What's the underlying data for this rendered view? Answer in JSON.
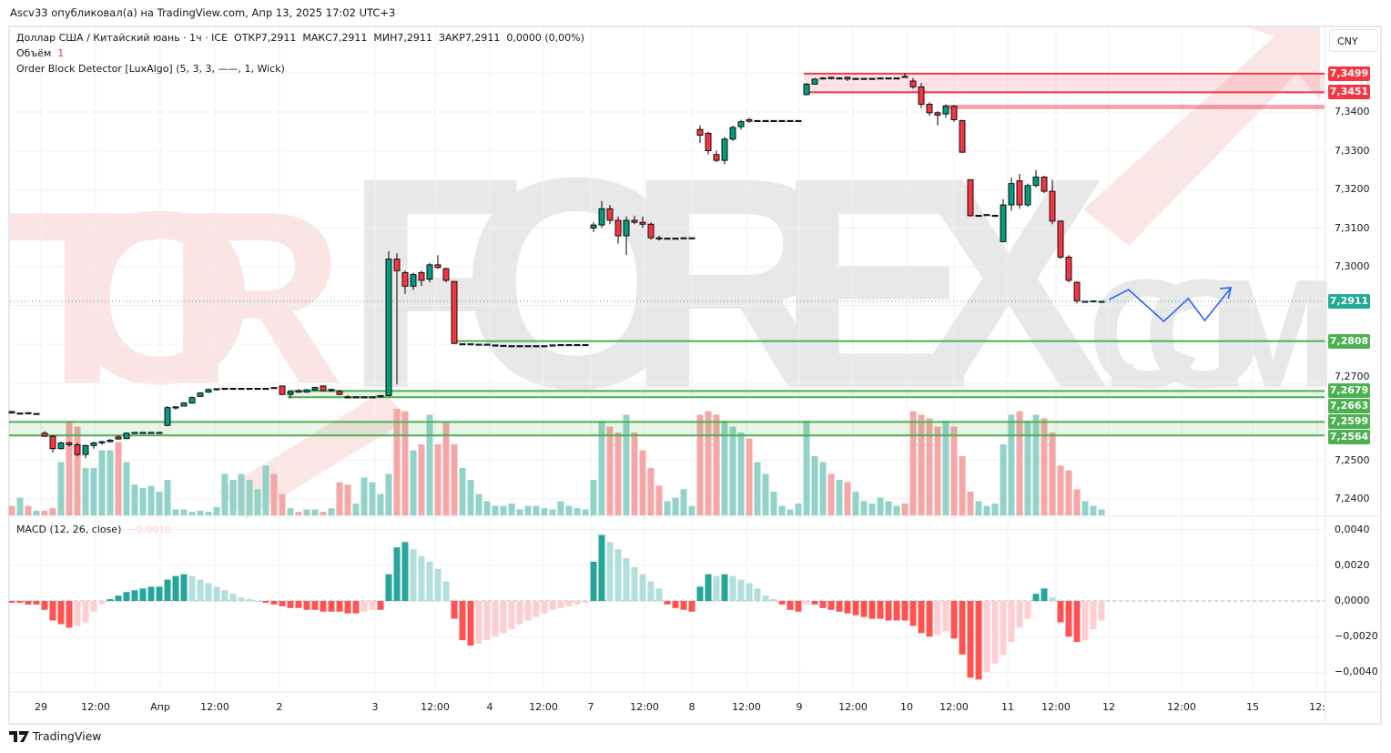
{
  "header": {
    "published": "Ascv33 опубликовал(а) на TradingView.com, Апр 13, 2025 17:02 UTC+3"
  },
  "legend": {
    "symbol": "Доллар США / Китайский юань · 1ч · ICE",
    "open": "ОТКР7,2911",
    "high": "МАКС7,2911",
    "low": "МИН7,2911",
    "close": "ЗАКР7,2911",
    "change": "0,0000 (0,00%)",
    "volume_label": "Объём",
    "volume_value": "1",
    "indicator": "Order Block Detector [LuxAlgo] (5, 3, 3, ——, 1, Wick)",
    "macd_label": "MACD (12, 26, close)",
    "macd_value": "−0,0010"
  },
  "currency_button": "CNY",
  "watermark": {
    "text_left": "TOR",
    "text_mid": "FOREX",
    "text_right": ".COM"
  },
  "price_axis": {
    "ticks": [
      "7,3400",
      "7,3300",
      "7,3200",
      "7,3100",
      "7,3000",
      "7,2700",
      "7,2500",
      "7,2400"
    ],
    "tick_values": [
      7.34,
      7.33,
      7.32,
      7.31,
      7.3,
      7.27,
      7.25,
      7.24
    ],
    "ylim": [
      7.2392,
      7.3529
    ]
  },
  "price_badges": [
    {
      "label": "7,3499",
      "value": 7.3499,
      "color": "#f23645"
    },
    {
      "label": "7,3451",
      "value": 7.3451,
      "color": "#f23645"
    },
    {
      "label": "7,2911",
      "value": 7.2911,
      "color": "#22ab94"
    },
    {
      "label": "7,2808",
      "value": 7.2808,
      "color": "#4caf50"
    },
    {
      "label": "7,2679",
      "value": 7.2679,
      "color": "#4caf50"
    },
    {
      "label": "7,2663",
      "value": 7.2663,
      "color": "#4caf50"
    },
    {
      "label": "7,2599",
      "value": 7.2599,
      "color": "#4caf50"
    },
    {
      "label": "7,2564",
      "value": 7.2564,
      "color": "#4caf50"
    }
  ],
  "macd_axis": {
    "ticks": [
      "0,0040",
      "0,0020",
      "0,0000",
      "−0,0020",
      "−0,0040"
    ],
    "tick_values": [
      0.004,
      0.002,
      0,
      -0.002,
      -0.004
    ]
  },
  "time_axis": [
    "29",
    "12:00",
    "Апр",
    "12:00",
    "2",
    "3",
    "12:00",
    "4",
    "12:00",
    "7",
    "12:00",
    "8",
    "12:00",
    "9",
    "12:00",
    "10",
    "12:00",
    "11",
    "12:00",
    "12",
    "12:00",
    "15",
    "12:"
  ],
  "colors": {
    "up": "#089981",
    "down": "#f23645",
    "bull_ob": "#4caf50",
    "bear_ob": "#f23645",
    "forecast": "#2962ff",
    "last_price": "#22ab94"
  },
  "footer": {
    "brand": "TradingView"
  },
  "chart_data": {
    "type": "candlestick",
    "symbol": "USDCNY",
    "interval": "1h",
    "candles": [
      [
        7.2626,
        7.2628,
        7.262,
        7.2622
      ],
      [
        7.2622,
        7.2622,
        7.2622,
        7.2622
      ],
      [
        7.2623,
        7.2624,
        7.262,
        7.2621
      ],
      [
        7.2621,
        7.2621,
        7.2621,
        7.2621
      ],
      [
        7.257,
        7.2575,
        7.256,
        7.2562
      ],
      [
        7.2562,
        7.2565,
        7.252,
        7.253
      ],
      [
        7.253,
        7.2548,
        7.2528,
        7.2545
      ],
      [
        7.2545,
        7.2548,
        7.2536,
        7.254
      ],
      [
        7.254,
        7.2545,
        7.251,
        7.2515
      ],
      [
        7.2515,
        7.254,
        7.2505,
        7.2538
      ],
      [
        7.2538,
        7.2548,
        7.253,
        7.2545
      ],
      [
        7.2545,
        7.255,
        7.254,
        7.2548
      ],
      [
        7.2548,
        7.2555,
        7.2546,
        7.2552
      ],
      [
        7.256,
        7.2565,
        7.2553,
        7.2555
      ],
      [
        7.2556,
        7.2572,
        7.2555,
        7.257
      ],
      [
        7.2572,
        7.2572,
        7.2572,
        7.2572
      ],
      [
        7.2572,
        7.2572,
        7.2572,
        7.2572
      ],
      [
        7.2572,
        7.2573,
        7.2572,
        7.2572
      ],
      [
        7.2572,
        7.2572,
        7.2572,
        7.2572
      ],
      [
        7.259,
        7.264,
        7.2588,
        7.2636
      ],
      [
        7.2636,
        7.264,
        7.263,
        7.2638
      ],
      [
        7.264,
        7.265,
        7.264,
        7.2648
      ],
      [
        7.2648,
        7.2665,
        7.2646,
        7.2662
      ],
      [
        7.2665,
        7.2675,
        7.2664,
        7.2674
      ],
      [
        7.2676,
        7.2685,
        7.2674,
        7.2683
      ],
      [
        7.2683,
        7.2686,
        7.268,
        7.2685
      ],
      [
        7.2686,
        7.2687,
        7.2685,
        7.2686
      ],
      [
        7.2686,
        7.2686,
        7.2686,
        7.2686
      ],
      [
        7.2686,
        7.2687,
        7.2685,
        7.2686
      ],
      [
        7.2686,
        7.2686,
        7.2686,
        7.2686
      ],
      [
        7.2686,
        7.2686,
        7.2686,
        7.2686
      ],
      [
        7.2686,
        7.2686,
        7.2686,
        7.2686
      ],
      [
        7.2688,
        7.2689,
        7.2686,
        7.2687
      ],
      [
        7.2692,
        7.2693,
        7.2668,
        7.267
      ],
      [
        7.267,
        7.268,
        7.266,
        7.2677
      ],
      [
        7.268,
        7.2684,
        7.2674,
        7.2676
      ],
      [
        7.2676,
        7.2684,
        7.2675,
        7.2682
      ],
      [
        7.2682,
        7.269,
        7.268,
        7.2688
      ],
      [
        7.2692,
        7.2694,
        7.2678,
        7.268
      ],
      [
        7.268,
        7.2685,
        7.2676,
        7.2683
      ],
      [
        7.2678,
        7.2682,
        7.2668,
        7.267
      ],
      [
        7.2664,
        7.2668,
        7.266,
        7.2662
      ],
      [
        7.2664,
        7.2664,
        7.2664,
        7.2664
      ],
      [
        7.2664,
        7.2664,
        7.2664,
        7.2664
      ],
      [
        7.2664,
        7.2664,
        7.2664,
        7.2664
      ],
      [
        7.2664,
        7.2668,
        7.2663,
        7.2667
      ],
      [
        7.2667,
        7.304,
        7.2665,
        7.302
      ],
      [
        7.302,
        7.3035,
        7.2696,
        7.299
      ],
      [
        7.2985,
        7.299,
        7.293,
        7.295
      ],
      [
        7.295,
        7.2985,
        7.294,
        7.298
      ],
      [
        7.2985,
        7.299,
        7.295,
        7.2965
      ],
      [
        7.2968,
        7.301,
        7.296,
        7.3005
      ],
      [
        7.3005,
        7.303,
        7.2995,
        7.2998
      ],
      [
        7.2995,
        7.2998,
        7.296,
        7.2965
      ],
      [
        7.2962,
        7.2963,
        7.28,
        7.2802
      ],
      [
        7.2801,
        7.2801,
        7.2801,
        7.2801
      ],
      [
        7.2801,
        7.2801,
        7.2801,
        7.2801
      ],
      [
        7.28,
        7.28,
        7.28,
        7.28
      ],
      [
        7.28,
        7.28,
        7.28,
        7.28
      ],
      [
        7.2798,
        7.2798,
        7.2798,
        7.2798
      ],
      [
        7.2797,
        7.2797,
        7.2797,
        7.2797
      ],
      [
        7.2796,
        7.2796,
        7.2796,
        7.2796
      ],
      [
        7.2796,
        7.2796,
        7.2796,
        7.2796
      ],
      [
        7.2796,
        7.2796,
        7.2796,
        7.2796
      ],
      [
        7.2796,
        7.2796,
        7.2796,
        7.2796
      ],
      [
        7.2796,
        7.2796,
        7.2796,
        7.2796
      ],
      [
        7.2798,
        7.2799,
        7.2797,
        7.2798
      ],
      [
        7.2799,
        7.2799,
        7.2799,
        7.2799
      ],
      [
        7.2799,
        7.2799,
        7.2799,
        7.2799
      ],
      [
        7.2799,
        7.2799,
        7.2799,
        7.2799
      ],
      [
        7.2799,
        7.2799,
        7.2799,
        7.2799
      ],
      [
        7.31,
        7.3115,
        7.309,
        7.3108
      ],
      [
        7.3108,
        7.317,
        7.31,
        7.315
      ],
      [
        7.315,
        7.316,
        7.311,
        7.312
      ],
      [
        7.312,
        7.313,
        7.306,
        7.308
      ],
      [
        7.308,
        7.313,
        7.303,
        7.312
      ],
      [
        7.312,
        7.3132,
        7.311,
        7.3115
      ],
      [
        7.3115,
        7.313,
        7.31,
        7.311
      ],
      [
        7.311,
        7.3115,
        7.307,
        7.3075
      ],
      [
        7.3075,
        7.308,
        7.3068,
        7.3072
      ],
      [
        7.3074,
        7.3074,
        7.3074,
        7.3074
      ],
      [
        7.3074,
        7.3074,
        7.3074,
        7.3074
      ],
      [
        7.3074,
        7.3076,
        7.3074,
        7.3075
      ],
      [
        7.3075,
        7.3075,
        7.3075,
        7.3075
      ],
      [
        7.3355,
        7.3365,
        7.332,
        7.334
      ],
      [
        7.3345,
        7.3348,
        7.329,
        7.33
      ],
      [
        7.329,
        7.33,
        7.327,
        7.3275
      ],
      [
        7.3275,
        7.3335,
        7.3265,
        7.333
      ],
      [
        7.333,
        7.3365,
        7.3325,
        7.336
      ],
      [
        7.3362,
        7.338,
        7.3355,
        7.3375
      ],
      [
        7.338,
        7.3385,
        7.3372,
        7.3376
      ],
      [
        7.3378,
        7.3378,
        7.3378,
        7.3378
      ],
      [
        7.3378,
        7.3379,
        7.3377,
        7.3378
      ],
      [
        7.3378,
        7.3378,
        7.3378,
        7.3378
      ],
      [
        7.3378,
        7.3378,
        7.3378,
        7.3378
      ],
      [
        7.3378,
        7.3378,
        7.3378,
        7.3378
      ],
      [
        7.3378,
        7.3378,
        7.3378,
        7.3378
      ],
      [
        7.3445,
        7.3475,
        7.3443,
        7.3472
      ],
      [
        7.3472,
        7.3488,
        7.347,
        7.3485
      ],
      [
        7.3486,
        7.349,
        7.3484,
        7.3488
      ],
      [
        7.349,
        7.3491,
        7.3484,
        7.3486
      ],
      [
        7.3486,
        7.349,
        7.3484,
        7.3488
      ],
      [
        7.349,
        7.3491,
        7.348,
        7.3485
      ],
      [
        7.3484,
        7.3488,
        7.3483,
        7.3487
      ],
      [
        7.3487,
        7.3487,
        7.3487,
        7.3487
      ],
      [
        7.3487,
        7.3487,
        7.3487,
        7.3487
      ],
      [
        7.3487,
        7.3488,
        7.3487,
        7.3488
      ],
      [
        7.3488,
        7.3488,
        7.3488,
        7.3488
      ],
      [
        7.3488,
        7.3488,
        7.3488,
        7.3488
      ],
      [
        7.3492,
        7.35,
        7.349,
        7.3491
      ],
      [
        7.348,
        7.3488,
        7.346,
        7.3465
      ],
      [
        7.3465,
        7.3475,
        7.341,
        7.342
      ],
      [
        7.342,
        7.3425,
        7.339,
        7.3398
      ],
      [
        7.3398,
        7.3402,
        7.3365,
        7.3392
      ],
      [
        7.3395,
        7.342,
        7.3385,
        7.3415
      ],
      [
        7.3415,
        7.3418,
        7.3375,
        7.338
      ],
      [
        7.3378,
        7.338,
        7.3295,
        7.3296
      ],
      [
        7.3225,
        7.3226,
        7.313,
        7.3132
      ],
      [
        7.3133,
        7.3133,
        7.3133,
        7.3133
      ],
      [
        7.3133,
        7.3136,
        7.3132,
        7.3135
      ],
      [
        7.3133,
        7.3133,
        7.3133,
        7.3133
      ],
      [
        7.3065,
        7.3175,
        7.3063,
        7.316
      ],
      [
        7.316,
        7.323,
        7.3145,
        7.3215
      ],
      [
        7.3222,
        7.324,
        7.315,
        7.316
      ],
      [
        7.316,
        7.3215,
        7.3155,
        7.321
      ],
      [
        7.321,
        7.325,
        7.3205,
        7.3232
      ],
      [
        7.3232,
        7.3235,
        7.319,
        7.3195
      ],
      [
        7.3195,
        7.3225,
        7.311,
        7.3118
      ],
      [
        7.3118,
        7.312,
        7.302,
        7.3025
      ],
      [
        7.3025,
        7.303,
        7.296,
        7.2965
      ],
      [
        7.296,
        7.2962,
        7.2906,
        7.2912
      ],
      [
        7.2911,
        7.2911,
        7.2911,
        7.2911
      ],
      [
        7.2912,
        7.2913,
        7.2911,
        7.2912
      ],
      [
        7.2911,
        7.2911,
        7.2911,
        7.2911
      ]
    ],
    "volume": [
      8,
      15,
      8,
      4,
      4,
      6,
      45,
      80,
      75,
      40,
      40,
      55,
      55,
      62,
      45,
      26,
      23,
      25,
      20,
      30,
      5,
      5,
      3,
      4,
      3,
      7,
      35,
      30,
      35,
      30,
      22,
      42,
      35,
      18,
      6,
      3,
      5,
      5,
      3,
      6,
      28,
      26,
      10,
      32,
      28,
      18,
      35,
      90,
      88,
      55,
      60,
      85,
      60,
      78,
      60,
      40,
      30,
      18,
      12,
      8,
      8,
      10,
      5,
      8,
      8,
      6,
      5,
      12,
      8,
      6,
      5,
      30,
      80,
      75,
      70,
      85,
      70,
      55,
      40,
      25,
      12,
      15,
      22,
      8,
      85,
      88,
      85,
      80,
      75,
      70,
      65,
      45,
      35,
      20,
      8,
      5,
      10,
      80,
      50,
      45,
      35,
      30,
      28,
      20,
      12,
      10,
      15,
      12,
      8,
      10,
      88,
      85,
      82,
      75,
      80,
      75,
      50,
      20,
      12,
      8,
      10,
      60,
      85,
      88,
      80,
      85,
      82,
      70,
      42,
      38,
      22,
      12,
      8,
      5
    ],
    "macd_histogram": [
      -0.0001,
      -0.0001,
      -0.0002,
      -0.0002,
      -0.0005,
      -0.0011,
      -0.0013,
      -0.0015,
      -0.0014,
      -0.0012,
      -0.0006,
      -0.0002,
      0.0001,
      0.0003,
      0.0005,
      0.0006,
      0.0007,
      0.0008,
      0.0008,
      0.0012,
      0.0014,
      0.0015,
      0.0014,
      0.0012,
      0.001,
      0.0008,
      0.0006,
      0.0004,
      0.0002,
      0.0001,
      0.0,
      -0.0001,
      -0.0002,
      -0.0003,
      -0.0004,
      -0.0004,
      -0.0005,
      -0.0005,
      -0.0006,
      -0.0006,
      -0.0006,
      -0.0007,
      -0.0007,
      -0.0006,
      -0.0005,
      -0.0005,
      0.0015,
      0.003,
      0.0033,
      0.0029,
      0.0025,
      0.0022,
      0.0018,
      0.0011,
      -0.001,
      -0.0022,
      -0.0025,
      -0.0024,
      -0.0022,
      -0.002,
      -0.0018,
      -0.0016,
      -0.0013,
      -0.0011,
      -0.0009,
      -0.0007,
      -0.0005,
      -0.0004,
      -0.0003,
      -0.0002,
      -0.0001,
      0.0022,
      0.0037,
      0.0033,
      0.0029,
      0.0024,
      0.0019,
      0.0015,
      0.0011,
      0.0007,
      -0.0002,
      -0.0004,
      -0.0005,
      -0.0006,
      0.0008,
      0.0015,
      0.0014,
      0.0015,
      0.0014,
      0.0012,
      0.001,
      0.0007,
      0.0003,
      0.0001,
      -0.0002,
      -0.0005,
      -0.0006,
      -0.0002,
      -0.0002,
      -0.0004,
      -0.0005,
      -0.0006,
      -0.0007,
      -0.0008,
      -0.0009,
      -0.001,
      -0.001,
      -0.0011,
      -0.0011,
      -0.0011,
      -0.0014,
      -0.0018,
      -0.002,
      -0.0019,
      -0.0017,
      -0.0021,
      -0.003,
      -0.0043,
      -0.0044,
      -0.004,
      -0.0035,
      -0.003,
      -0.0023,
      -0.0015,
      -0.001,
      0.0004,
      0.0007,
      0.0002,
      -0.0012,
      -0.002,
      -0.0023,
      -0.0022,
      -0.0016,
      -0.0011
    ],
    "order_blocks": [
      {
        "type": "bearish",
        "top": 7.3499,
        "bottom": 7.3451,
        "start_bar": 97
      },
      {
        "type": "bearish",
        "top": 7.3416,
        "bottom": 7.341,
        "start_bar": 114
      },
      {
        "type": "bullish",
        "top": 7.2808,
        "bottom": 7.2808,
        "start_bar": 54
      },
      {
        "type": "bullish",
        "top": 7.2679,
        "bottom": 7.2663,
        "start_bar": 34
      },
      {
        "type": "bullish",
        "top": 7.2599,
        "bottom": 7.2564,
        "start_bar": 0
      }
    ],
    "last_price": 7.2911,
    "forecast_path": [
      [
        133.9,
        7.2915
      ],
      [
        136.3,
        7.2941
      ],
      [
        140.6,
        7.2859
      ],
      [
        143.6,
        7.2918
      ],
      [
        145.6,
        7.2861
      ],
      [
        148.8,
        7.2946
      ]
    ]
  }
}
